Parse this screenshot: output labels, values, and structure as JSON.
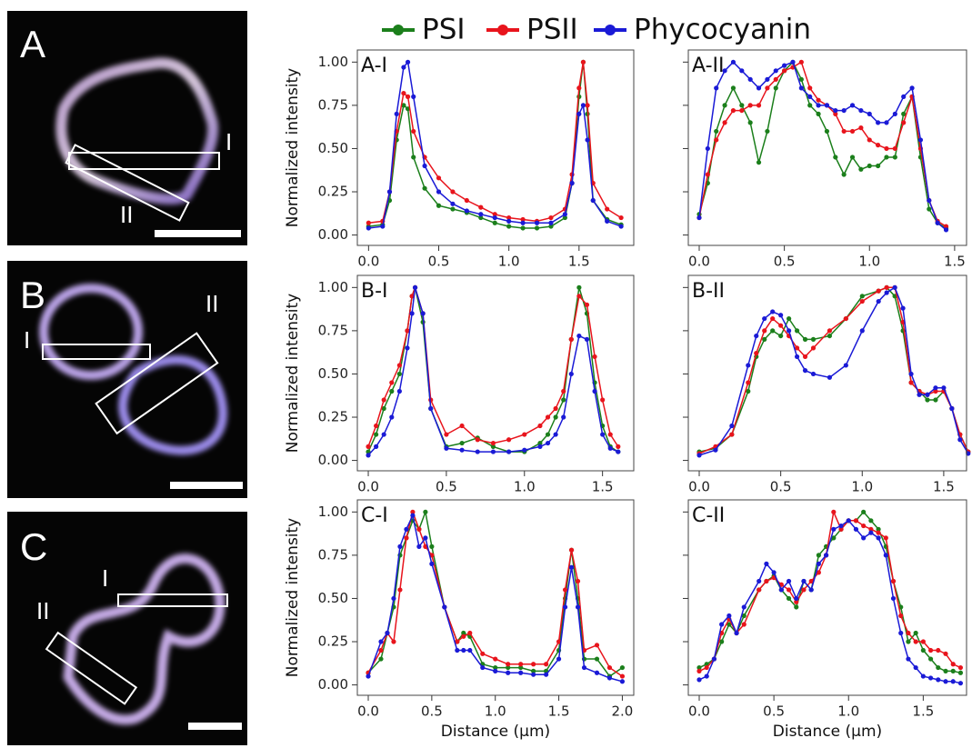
{
  "legend": [
    {
      "name": "PSI",
      "color": "#1b7f1b"
    },
    {
      "name": "PSII",
      "color": "#e8141c"
    },
    {
      "name": "Phycocyanin",
      "color": "#1a1ad6"
    }
  ],
  "image_panels": [
    {
      "label": "A",
      "regions": [
        "I",
        "II"
      ]
    },
    {
      "label": "B",
      "regions": [
        "I",
        "II"
      ]
    },
    {
      "label": "C",
      "regions": [
        "I",
        "II"
      ]
    }
  ],
  "chart_data": [
    {
      "type": "line",
      "title": "A-I",
      "y_label": "Normalized intensity",
      "x": [
        0,
        0.1,
        0.15,
        0.2,
        0.25,
        0.28,
        0.32,
        0.4,
        0.5,
        0.6,
        0.7,
        0.8,
        0.9,
        1.0,
        1.1,
        1.2,
        1.3,
        1.4,
        1.45,
        1.5,
        1.53,
        1.56,
        1.6,
        1.7,
        1.8
      ],
      "series": [
        {
          "values": [
            0.05,
            0.06,
            0.2,
            0.55,
            0.75,
            0.73,
            0.45,
            0.27,
            0.17,
            0.15,
            0.13,
            0.1,
            0.07,
            0.05,
            0.04,
            0.04,
            0.05,
            0.1,
            0.3,
            0.8,
            1.0,
            0.7,
            0.2,
            0.09,
            0.06
          ]
        },
        {
          "values": [
            0.07,
            0.08,
            0.25,
            0.6,
            0.82,
            0.8,
            0.6,
            0.45,
            0.33,
            0.25,
            0.2,
            0.16,
            0.12,
            0.1,
            0.09,
            0.08,
            0.1,
            0.15,
            0.35,
            0.85,
            1.0,
            0.75,
            0.3,
            0.15,
            0.1
          ]
        },
        {
          "values": [
            0.04,
            0.05,
            0.25,
            0.7,
            0.97,
            1.0,
            0.8,
            0.4,
            0.25,
            0.18,
            0.14,
            0.12,
            0.1,
            0.08,
            0.07,
            0.07,
            0.07,
            0.12,
            0.3,
            0.7,
            0.75,
            0.55,
            0.2,
            0.08,
            0.05
          ]
        }
      ],
      "xlim": [
        -0.08,
        1.89
      ],
      "ylim": [
        -0.06,
        1.07
      ],
      "xticks": [
        {
          "value": 0,
          "label": "0.0"
        },
        0.5,
        {
          "value": 1,
          "label": "1.0"
        },
        1.5
      ],
      "yticks": [
        {
          "value": 0,
          "label": "0.00"
        },
        0.25,
        {
          "value": 0.5,
          "label": "0.50"
        },
        0.75,
        {
          "value": 1,
          "label": "1.00"
        }
      ]
    },
    {
      "type": "line",
      "title": "A-II",
      "x": [
        0,
        0.05,
        0.1,
        0.15,
        0.2,
        0.25,
        0.3,
        0.35,
        0.4,
        0.45,
        0.5,
        0.55,
        0.6,
        0.65,
        0.7,
        0.75,
        0.8,
        0.85,
        0.9,
        0.95,
        1.0,
        1.05,
        1.1,
        1.15,
        1.2,
        1.25,
        1.3,
        1.35,
        1.4,
        1.45
      ],
      "series": [
        {
          "values": [
            0.12,
            0.3,
            0.6,
            0.75,
            0.85,
            0.75,
            0.65,
            0.42,
            0.6,
            0.85,
            0.95,
            1.0,
            0.9,
            0.75,
            0.7,
            0.6,
            0.45,
            0.35,
            0.45,
            0.38,
            0.4,
            0.4,
            0.45,
            0.45,
            0.7,
            0.8,
            0.45,
            0.15,
            0.07,
            0.04
          ]
        },
        {
          "values": [
            0.1,
            0.35,
            0.55,
            0.65,
            0.72,
            0.72,
            0.75,
            0.75,
            0.85,
            0.9,
            0.95,
            0.97,
            1.0,
            0.85,
            0.78,
            0.75,
            0.7,
            0.6,
            0.6,
            0.62,
            0.55,
            0.52,
            0.5,
            0.5,
            0.65,
            0.8,
            0.5,
            0.2,
            0.08,
            0.05
          ]
        },
        {
          "values": [
            0.1,
            0.5,
            0.85,
            0.95,
            1.0,
            0.95,
            0.9,
            0.85,
            0.9,
            0.95,
            0.98,
            1.0,
            0.85,
            0.8,
            0.75,
            0.75,
            0.72,
            0.72,
            0.75,
            0.72,
            0.7,
            0.65,
            0.65,
            0.7,
            0.8,
            0.85,
            0.55,
            0.2,
            0.07,
            0.03
          ]
        }
      ],
      "xlim": [
        -0.064,
        1.57
      ],
      "ylim": [
        -0.06,
        1.07
      ],
      "xticks": [
        {
          "value": 0,
          "label": "0.0"
        },
        0.5,
        {
          "value": 1,
          "label": "1.0"
        },
        1.5
      ],
      "yticks": [
        0,
        0.25,
        0.5,
        0.75,
        1
      ]
    },
    {
      "type": "line",
      "title": "B-I",
      "y_label": "Normalized intensity",
      "x": [
        0,
        0.05,
        0.1,
        0.15,
        0.2,
        0.25,
        0.28,
        0.3,
        0.35,
        0.4,
        0.5,
        0.6,
        0.7,
        0.8,
        0.9,
        1.0,
        1.1,
        1.15,
        1.2,
        1.25,
        1.3,
        1.35,
        1.4,
        1.45,
        1.5,
        1.55,
        1.6
      ],
      "series": [
        {
          "values": [
            0.05,
            0.15,
            0.3,
            0.4,
            0.5,
            0.75,
            0.95,
            1.0,
            0.8,
            0.3,
            0.08,
            0.1,
            0.13,
            0.08,
            0.05,
            0.05,
            0.1,
            0.15,
            0.25,
            0.35,
            0.7,
            1.0,
            0.85,
            0.45,
            0.2,
            0.08,
            0.05
          ]
        },
        {
          "values": [
            0.08,
            0.2,
            0.35,
            0.45,
            0.55,
            0.75,
            0.95,
            1.0,
            0.85,
            0.35,
            0.15,
            0.2,
            0.12,
            0.1,
            0.12,
            0.15,
            0.2,
            0.25,
            0.3,
            0.4,
            0.7,
            0.95,
            0.9,
            0.6,
            0.35,
            0.15,
            0.08
          ]
        },
        {
          "values": [
            0.03,
            0.08,
            0.15,
            0.25,
            0.4,
            0.65,
            0.85,
            1.0,
            0.85,
            0.3,
            0.07,
            0.06,
            0.05,
            0.05,
            0.05,
            0.06,
            0.08,
            0.1,
            0.15,
            0.25,
            0.5,
            0.72,
            0.7,
            0.4,
            0.15,
            0.07,
            0.05
          ]
        }
      ],
      "xlim": [
        -0.07,
        1.7
      ],
      "ylim": [
        -0.06,
        1.07
      ],
      "xticks": [
        {
          "value": 0,
          "label": "0.0"
        },
        0.5,
        {
          "value": 1,
          "label": "1.0"
        },
        1.5
      ],
      "yticks": [
        {
          "value": 0,
          "label": "0.00"
        },
        0.25,
        {
          "value": 0.5,
          "label": "0.50"
        },
        0.75,
        {
          "value": 1,
          "label": "1.00"
        }
      ]
    },
    {
      "type": "line",
      "title": "B-II",
      "x": [
        0,
        0.1,
        0.2,
        0.3,
        0.35,
        0.4,
        0.45,
        0.5,
        0.55,
        0.6,
        0.65,
        0.7,
        0.8,
        0.9,
        1.0,
        1.1,
        1.15,
        1.2,
        1.25,
        1.3,
        1.35,
        1.4,
        1.45,
        1.5,
        1.55,
        1.6,
        1.65
      ],
      "series": [
        {
          "values": [
            0.05,
            0.07,
            0.15,
            0.4,
            0.6,
            0.7,
            0.75,
            0.72,
            0.82,
            0.75,
            0.7,
            0.7,
            0.72,
            0.82,
            0.95,
            0.98,
            1.0,
            0.95,
            0.75,
            0.45,
            0.4,
            0.35,
            0.35,
            0.4,
            0.3,
            0.15,
            0.05
          ]
        },
        {
          "values": [
            0.04,
            0.08,
            0.15,
            0.45,
            0.62,
            0.75,
            0.82,
            0.78,
            0.72,
            0.65,
            0.6,
            0.65,
            0.75,
            0.82,
            0.92,
            0.98,
            1.0,
            1.0,
            0.8,
            0.45,
            0.4,
            0.38,
            0.4,
            0.4,
            0.3,
            0.15,
            0.05
          ]
        },
        {
          "values": [
            0.03,
            0.06,
            0.2,
            0.55,
            0.72,
            0.82,
            0.86,
            0.84,
            0.75,
            0.6,
            0.52,
            0.5,
            0.48,
            0.55,
            0.75,
            0.92,
            0.97,
            1.0,
            0.88,
            0.5,
            0.38,
            0.38,
            0.42,
            0.42,
            0.3,
            0.12,
            0.04
          ]
        }
      ],
      "xlim": [
        -0.067,
        1.64
      ],
      "ylim": [
        -0.06,
        1.07
      ],
      "xticks": [
        {
          "value": 0,
          "label": "0.0"
        },
        0.5,
        {
          "value": 1,
          "label": "1.0"
        },
        1.5
      ],
      "yticks": [
        0,
        0.25,
        0.5,
        0.75,
        1
      ]
    },
    {
      "type": "line",
      "title": "C-I",
      "y_label": "Normalized intensity",
      "x_label": "Distance (μm)",
      "x": [
        0,
        0.1,
        0.15,
        0.2,
        0.25,
        0.3,
        0.35,
        0.4,
        0.45,
        0.5,
        0.6,
        0.7,
        0.75,
        0.8,
        0.9,
        1.0,
        1.1,
        1.2,
        1.3,
        1.4,
        1.5,
        1.55,
        1.6,
        1.65,
        1.7,
        1.8,
        1.9,
        2.0
      ],
      "series": [
        {
          "values": [
            0.07,
            0.15,
            0.3,
            0.45,
            0.75,
            0.85,
            0.95,
            0.9,
            1.0,
            0.8,
            0.45,
            0.25,
            0.3,
            0.28,
            0.12,
            0.1,
            0.1,
            0.1,
            0.08,
            0.08,
            0.2,
            0.5,
            0.78,
            0.5,
            0.15,
            0.15,
            0.05,
            0.1
          ]
        },
        {
          "values": [
            0.07,
            0.2,
            0.3,
            0.25,
            0.55,
            0.85,
            1.0,
            0.9,
            0.8,
            0.75,
            0.45,
            0.25,
            0.28,
            0.3,
            0.18,
            0.15,
            0.12,
            0.12,
            0.12,
            0.12,
            0.25,
            0.55,
            0.78,
            0.6,
            0.2,
            0.23,
            0.1,
            0.05
          ]
        },
        {
          "values": [
            0.05,
            0.25,
            0.3,
            0.5,
            0.8,
            0.9,
            0.98,
            0.8,
            0.85,
            0.7,
            0.45,
            0.2,
            0.2,
            0.2,
            0.1,
            0.08,
            0.07,
            0.07,
            0.06,
            0.06,
            0.15,
            0.45,
            0.68,
            0.45,
            0.1,
            0.07,
            0.04,
            0.02
          ]
        }
      ],
      "xlim": [
        -0.086,
        2.09
      ],
      "ylim": [
        -0.06,
        1.07
      ],
      "xticks": [
        {
          "value": 0,
          "label": "0.0"
        },
        0.5,
        {
          "value": 1,
          "label": "1.0"
        },
        1.5,
        {
          "value": 2,
          "label": "2.0"
        }
      ],
      "yticks": [
        {
          "value": 0,
          "label": "0.00"
        },
        0.25,
        {
          "value": 0.5,
          "label": "0.50"
        },
        0.75,
        {
          "value": 1,
          "label": "1.00"
        }
      ]
    },
    {
      "type": "line",
      "title": "C-II",
      "x_label": "Distance (μm)",
      "x": [
        0,
        0.05,
        0.1,
        0.15,
        0.2,
        0.25,
        0.3,
        0.4,
        0.45,
        0.5,
        0.55,
        0.6,
        0.65,
        0.7,
        0.75,
        0.8,
        0.85,
        0.9,
        0.95,
        1.0,
        1.05,
        1.1,
        1.15,
        1.2,
        1.25,
        1.3,
        1.35,
        1.4,
        1.45,
        1.5,
        1.55,
        1.6,
        1.65,
        1.7,
        1.75
      ],
      "series": [
        {
          "values": [
            0.1,
            0.12,
            0.15,
            0.25,
            0.35,
            0.3,
            0.4,
            0.55,
            0.6,
            0.63,
            0.55,
            0.5,
            0.45,
            0.6,
            0.55,
            0.75,
            0.8,
            0.85,
            0.9,
            0.95,
            0.95,
            1.0,
            0.95,
            0.9,
            0.8,
            0.6,
            0.45,
            0.25,
            0.3,
            0.2,
            0.15,
            0.1,
            0.08,
            0.08,
            0.07
          ]
        },
        {
          "values": [
            0.08,
            0.1,
            0.15,
            0.3,
            0.38,
            0.3,
            0.35,
            0.55,
            0.6,
            0.62,
            0.58,
            0.55,
            0.48,
            0.55,
            0.6,
            0.65,
            0.75,
            1.0,
            0.9,
            0.95,
            0.95,
            0.92,
            0.9,
            0.88,
            0.85,
            0.6,
            0.4,
            0.3,
            0.25,
            0.25,
            0.2,
            0.2,
            0.18,
            0.12,
            0.1
          ]
        },
        {
          "values": [
            0.03,
            0.05,
            0.15,
            0.35,
            0.4,
            0.3,
            0.45,
            0.6,
            0.7,
            0.65,
            0.55,
            0.6,
            0.5,
            0.6,
            0.55,
            0.7,
            0.75,
            0.9,
            0.92,
            0.95,
            0.9,
            0.85,
            0.88,
            0.85,
            0.75,
            0.5,
            0.3,
            0.15,
            0.1,
            0.05,
            0.04,
            0.03,
            0.02,
            0.02,
            0.01
          ]
        }
      ],
      "xlim": [
        -0.073,
        1.79
      ],
      "ylim": [
        -0.06,
        1.07
      ],
      "xticks": [
        {
          "value": 0,
          "label": "0.0"
        },
        0.5,
        {
          "value": 1,
          "label": "1.0"
        },
        1.5
      ],
      "yticks": [
        0,
        0.25,
        0.5,
        0.75,
        1
      ]
    }
  ]
}
